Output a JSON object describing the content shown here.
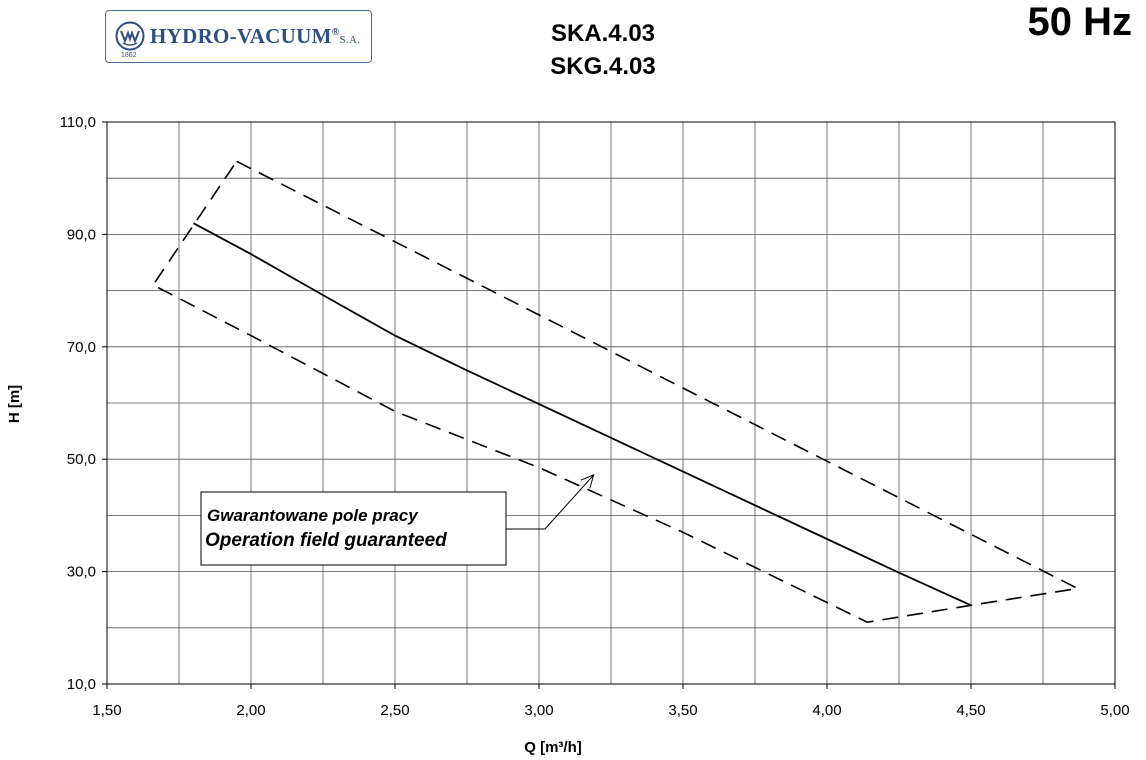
{
  "header": {
    "logo_text": "HYDRO-VACUUM",
    "logo_reg": "®",
    "logo_suffix": "S.A.",
    "logo_year": "1862",
    "model_1": "SKA.4.03",
    "model_2": "SKG.4.03",
    "frequency": "50 Hz"
  },
  "chart_data": {
    "type": "line",
    "xlabel": "Q [m³/h]",
    "ylabel": "H  [m]",
    "xlim": [
      1.5,
      5.0
    ],
    "ylim": [
      10,
      110
    ],
    "x_ticks": [
      1.5,
      2.0,
      2.5,
      3.0,
      3.5,
      4.0,
      4.5,
      5.0
    ],
    "x_tick_labels": [
      "1,50",
      "2,00",
      "2,50",
      "3,00",
      "3,50",
      "4,00",
      "4,50",
      "5,00"
    ],
    "y_ticks": [
      10,
      30,
      50,
      70,
      90,
      110
    ],
    "y_tick_labels": [
      "10,0",
      "30,0",
      "50,0",
      "70,0",
      "90,0",
      "110,0"
    ],
    "y_minor_grid": [
      20,
      40,
      60,
      80,
      100
    ],
    "x_minor_grid": [
      1.75,
      2.25,
      2.75,
      3.25,
      3.75,
      4.25,
      4.75
    ],
    "grid": true,
    "series": [
      {
        "style": "solid",
        "x": [
          1.8,
          2.0,
          2.25,
          2.5,
          2.75,
          3.0,
          3.25,
          3.5,
          3.75,
          4.0,
          4.25,
          4.5
        ],
        "y": [
          92.0,
          86.5,
          79.2,
          72.0,
          65.8,
          59.8,
          53.8,
          47.8,
          41.8,
          35.8,
          29.8,
          24.0
        ]
      },
      {
        "style": "dashed",
        "x": [
          1.95,
          4.87,
          4.5,
          4.14,
          3.5,
          3.0,
          2.5,
          2.0,
          1.66,
          1.95
        ],
        "y": [
          103.0,
          27.0,
          24.0,
          21.0,
          37.0,
          48.5,
          58.5,
          72.0,
          81.0,
          103.0
        ]
      }
    ],
    "annotation": {
      "line_1": "Gwarantowane pole pracy",
      "line_2": "Operation field guaranteed",
      "arrow_to": [
        3.19,
        47.2
      ]
    }
  }
}
